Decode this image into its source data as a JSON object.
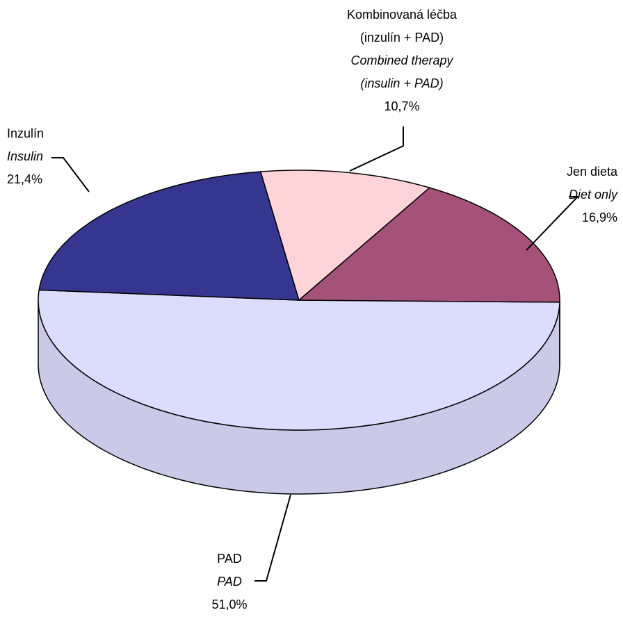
{
  "chart_data": {
    "type": "pie",
    "categories": [
      [
        "PAD"
      ],
      [
        "Inzulín"
      ],
      [
        "Kombinovaná léčba",
        "(inzulín + PAD)"
      ],
      [
        "Jen dieta"
      ]
    ],
    "categories_en": [
      [
        "PAD"
      ],
      [
        "Insulin"
      ],
      [
        "Combined therapy",
        "(insulin + PAD)"
      ],
      [
        "Diet only"
      ]
    ],
    "values": [
      51.0,
      21.4,
      10.7,
      16.9
    ],
    "value_labels": [
      "51,0%",
      "21,4%",
      "10,7%",
      "16,9%"
    ],
    "colors": [
      "#dcdcfc",
      "#363690",
      "#ffd4d8",
      "#a4527a"
    ]
  }
}
